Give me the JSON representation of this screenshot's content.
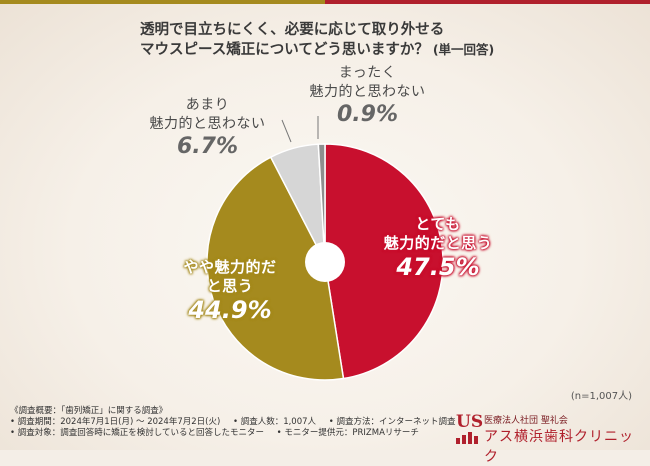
{
  "title_line1": "透明で目立ちにくく、必要に応じて取り外せる",
  "title_line2": "マウスピース矯正についてどう思いますか？",
  "title_suffix": "(単一回答)",
  "chart_data": {
    "type": "pie",
    "title": "透明で目立ちにくく、必要に応じて取り外せるマウスピース矯正についてどう思いますか？(単一回答)",
    "slices": [
      {
        "label": "とても魅力的だと思う",
        "value": 47.5,
        "color": "#c8102e"
      },
      {
        "label": "やや魅力的だと思う",
        "value": 44.9,
        "color": "#a58a1e"
      },
      {
        "label": "あまり魅力的と思わない",
        "value": 6.7,
        "color": "#d6d6d6"
      },
      {
        "label": "まったく魅力的と思わない",
        "value": 0.9,
        "color": "#8e8e8e"
      }
    ],
    "donut_hole": true,
    "start": "top",
    "direction": "clockwise"
  },
  "labels": {
    "very": {
      "line1": "とても",
      "line2": "魅力的だと思う",
      "pct": "47.5%"
    },
    "somewhat": {
      "line1": "やや魅力的だ",
      "line2": "と思う",
      "pct": "44.9%"
    },
    "notmuch": {
      "line1": "あまり",
      "line2": "魅力的と思わない",
      "pct": "6.7%"
    },
    "notatall": {
      "line1": "まったく",
      "line2": "魅力的と思わない",
      "pct": "0.9%"
    }
  },
  "n_note": "(n=1,007人)",
  "footer": {
    "line1": "《調査概要：「歯列矯正」に関する調査》",
    "line2a": "• 調査期間：2024年7月1日(月) 〜 2024年7月2日(火)",
    "line2b": "• 調査人数：1,007人",
    "line2c": "• 調査方法：インターネット調査",
    "line3a": "• 調査対象：調査回答時に矯正を検討していると回答したモニター",
    "line3b": "• モニター提供元：PRIZMAリサーチ"
  },
  "logo": {
    "mark": "US",
    "sub": "医療法人社団 聖礼会",
    "main": "アス横浜歯科クリニック"
  }
}
